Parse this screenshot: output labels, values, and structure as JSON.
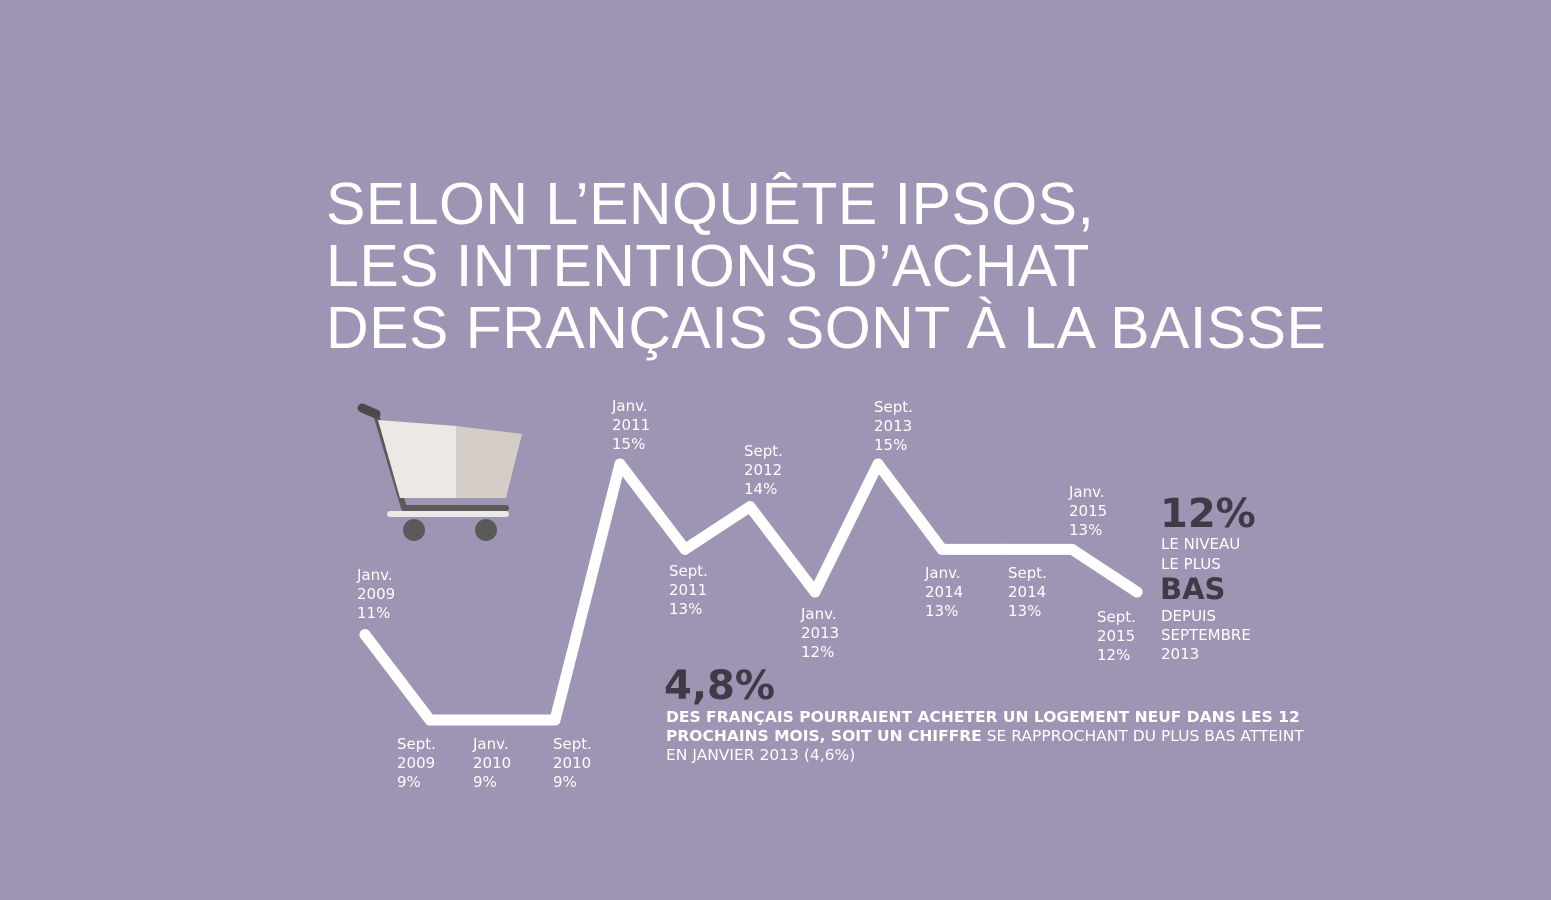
{
  "title_lines": [
    "SELON L’ENQUÊTE IPSOS,",
    "LES INTENTIONS D’ACHAT",
    "DES FRANÇAIS SONT À LA BAISSE"
  ],
  "colors": {
    "background": "#9e94b3",
    "line": "#ffffff",
    "dark_text": "#3f3a46",
    "cart_body_light": "#ece8e6",
    "cart_body_dark": "#d4cdc8",
    "cart_frame": "#5a5a5a"
  },
  "icons": {
    "cart": "shopping-cart-icon"
  },
  "chart_data": {
    "type": "line",
    "title": "",
    "xlabel": "",
    "ylabel": "",
    "unit": "%",
    "x": [
      "Janv. 2009",
      "Sept. 2009",
      "Janv. 2010",
      "Sept. 2010",
      "Janv. 2011",
      "Sept. 2011",
      "Sept. 2012",
      "Janv. 2013",
      "Sept. 2013",
      "Janv. 2014",
      "Sept. 2014",
      "Janv. 2015",
      "Sept. 2015"
    ],
    "point_labels": [
      [
        "Janv.",
        "2009",
        "11%"
      ],
      [
        "Sept.",
        "2009",
        "9%"
      ],
      [
        "Janv.",
        "2010",
        "9%"
      ],
      [
        "Sept.",
        "2010",
        "9%"
      ],
      [
        "Janv.",
        "2011",
        "15%"
      ],
      [
        "Sept.",
        "2011",
        "13%"
      ],
      [
        "Sept.",
        "2012",
        "14%"
      ],
      [
        "Janv.",
        "2013",
        "12%"
      ],
      [
        "Sept.",
        "2013",
        "15%"
      ],
      [
        "Janv.",
        "2014",
        "13%"
      ],
      [
        "Sept.",
        "2014",
        "13%"
      ],
      [
        "Janv.",
        "2015",
        "13%"
      ],
      [
        "Sept.",
        "2015",
        "12%"
      ]
    ],
    "values": [
      11,
      9,
      9,
      9,
      15,
      13,
      14,
      12,
      15,
      13,
      13,
      13,
      12
    ],
    "ylim": [
      9,
      15
    ],
    "grid": false,
    "legend": "none"
  },
  "stat_low": {
    "value": "12%",
    "line1": "LE NIVEAU",
    "line2": "LE PLUS",
    "emphasis": "BAS",
    "line3": "DEPUIS\nSEPTEMBRE\n2013"
  },
  "stat_housing": {
    "value": "4,8%",
    "text_bold": "DES FRANÇAIS POURRAIENT ACHETER UN LOGEMENT NEUF DANS LES 12 PROCHAINS MOIS, SOIT UN CHIFFRE",
    "text_regular": " SE RAPPROCHANT DU PLUS BAS ATTEINT EN JANVIER 2013 (4,6%)"
  }
}
